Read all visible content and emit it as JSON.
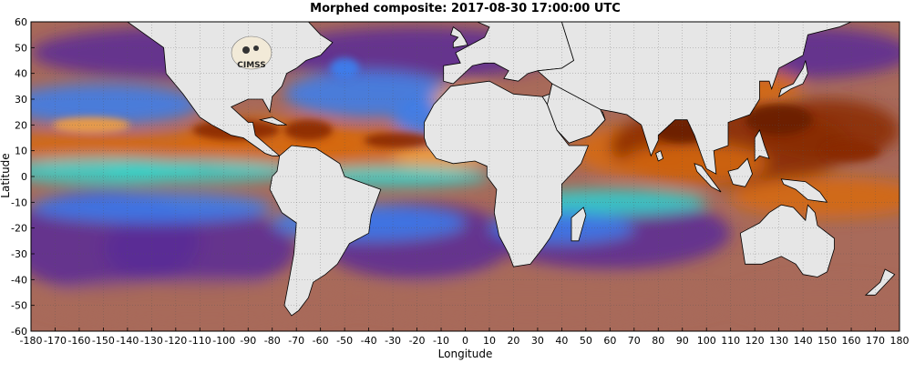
{
  "title": "Morphed composite: 2017-08-30 17:00:00 UTC",
  "xlabel": "Longitude",
  "ylabel": "Latitude",
  "logo_text": "CIMSS",
  "axes": {
    "xlim": [
      -180,
      180
    ],
    "ylim": [
      -60,
      60
    ],
    "xticks": [
      -180,
      -170,
      -160,
      -150,
      -140,
      -130,
      -120,
      -110,
      -100,
      -90,
      -80,
      -70,
      -60,
      -50,
      -40,
      -30,
      -20,
      -10,
      0,
      10,
      20,
      30,
      40,
      50,
      60,
      70,
      80,
      90,
      100,
      110,
      120,
      130,
      140,
      150,
      160,
      170,
      180
    ],
    "yticks": [
      -60,
      -50,
      -40,
      -30,
      -20,
      -10,
      0,
      10,
      20,
      30,
      40,
      50,
      60
    ],
    "grid": true
  },
  "colors": {
    "land": "#e6e6e6",
    "very_moist": "#8a2a05",
    "moist": "#d76a12",
    "moderate": "#f0a040",
    "mid": "#2fd8d0",
    "lowmid": "#3a7ff0",
    "dry": "#5a2a96",
    "very_dry": "#a86a5a"
  }
}
